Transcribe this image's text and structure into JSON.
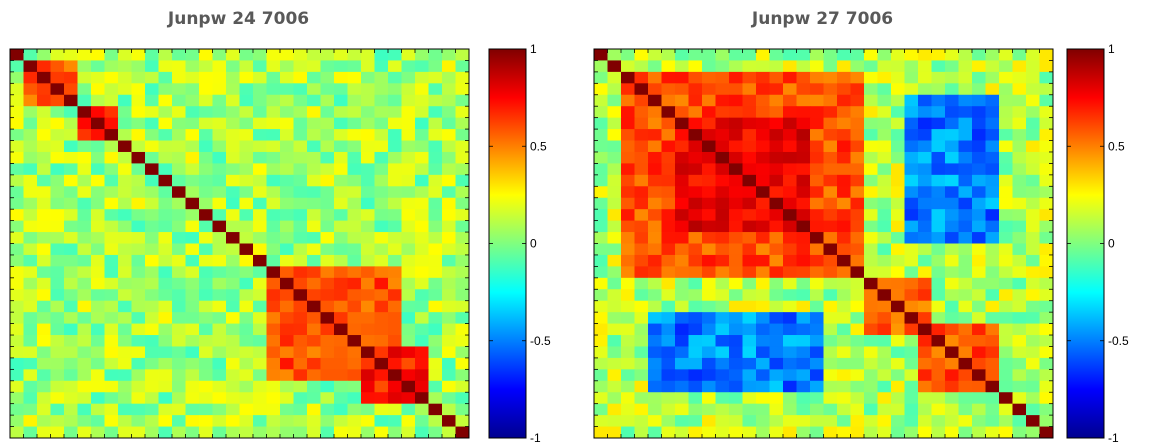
{
  "colormap": {
    "name": "jet",
    "stops": [
      "#00008f",
      "#0000ff",
      "#00ffff",
      "#ffff00",
      "#ff0000",
      "#800000"
    ]
  },
  "chart_data": [
    {
      "type": "heatmap",
      "title": "Junpw 24 7006",
      "size": 34,
      "clim": [
        -1,
        1
      ],
      "colorbar_ticks": [
        -1,
        -0.5,
        0,
        0.5,
        1
      ],
      "colorbar_labels": [
        "-1",
        "-0.5",
        "0",
        "0.5",
        "1"
      ],
      "background_level": 0.07,
      "blocks": [
        {
          "from": 1,
          "to": 4,
          "value": 0.55
        },
        {
          "from": 5,
          "to": 7,
          "value": 0.65
        },
        {
          "from": 19,
          "to": 28,
          "value": 0.6
        },
        {
          "from": 26,
          "to": 30,
          "value": 0.7
        }
      ],
      "cross_blocks": [],
      "diagonal_value": 1
    },
    {
      "type": "heatmap",
      "title": "Junpw 27 7006",
      "size": 34,
      "clim": [
        -1,
        1
      ],
      "colorbar_ticks": [
        -1,
        -0.5,
        0,
        0.5,
        1
      ],
      "colorbar_labels": [
        "-1",
        "-0.5",
        "0",
        "0.5",
        "1"
      ],
      "background_level": 0.1,
      "blocks": [
        {
          "from": 2,
          "to": 19,
          "value": 0.6
        },
        {
          "from": 6,
          "to": 15,
          "value": 0.78
        },
        {
          "from": 20,
          "to": 24,
          "value": 0.55
        },
        {
          "from": 24,
          "to": 29,
          "value": 0.6
        }
      ],
      "cross_blocks": [
        {
          "rows_from": 4,
          "rows_to": 16,
          "cols_from": 23,
          "cols_to": 29,
          "value": -0.5
        },
        {
          "rows_from": 23,
          "rows_to": 29,
          "cols_from": 4,
          "cols_to": 16,
          "value": -0.5
        }
      ],
      "diagonal_value": 1
    }
  ]
}
